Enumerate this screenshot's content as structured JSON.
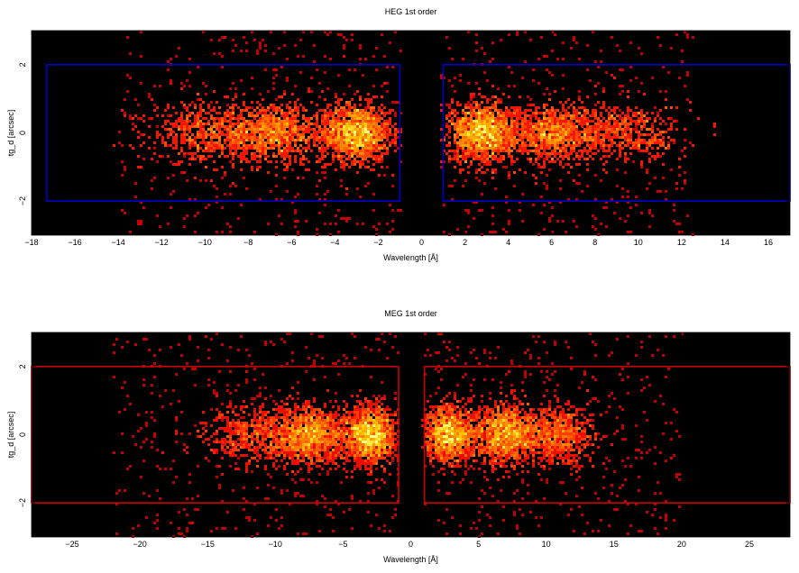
{
  "chart_data": [
    {
      "type": "heatmap",
      "title": "HEG 1st order",
      "xlabel": "Wavelength [Å]",
      "ylabel": "tg_d [arcsec]",
      "xlim": [
        -18,
        17
      ],
      "ylim": [
        -3,
        3
      ],
      "x_ticks": [
        -18,
        -16,
        -14,
        -12,
        -10,
        -8,
        -6,
        -4,
        -2,
        0,
        2,
        4,
        6,
        8,
        10,
        12,
        14,
        16
      ],
      "x_tick_labels": [
        "−18",
        "−16",
        "−14",
        "−12",
        "−10",
        "−8",
        "−6",
        "−4",
        "−2",
        "0",
        "2",
        "4",
        "6",
        "8",
        "10",
        "12",
        "14",
        "16"
      ],
      "y_ticks": [
        -2,
        0,
        2
      ],
      "y_tick_labels": [
        "−2",
        "0",
        "2"
      ],
      "background": "#000000",
      "box_color": "#0000cc",
      "extraction_regions": [
        {
          "x": [
            -17.3,
            -1.0
          ],
          "y": [
            -2,
            2
          ]
        },
        {
          "x": [
            1.0,
            17.0
          ],
          "y": [
            -2,
            2
          ]
        }
      ],
      "clusters": [
        {
          "x": -3.0,
          "width": 1.6,
          "intensity": 1.0
        },
        {
          "x": -6.8,
          "width": 2.5,
          "intensity": 0.75
        },
        {
          "x": -10.0,
          "width": 2.5,
          "intensity": 0.4
        },
        {
          "x": 2.8,
          "width": 1.5,
          "intensity": 1.0
        },
        {
          "x": 6.0,
          "width": 2.2,
          "intensity": 0.7
        },
        {
          "x": 9.5,
          "width": 2.5,
          "intensity": 0.35
        }
      ],
      "signal_range": [
        -14.0,
        12.5
      ]
    },
    {
      "type": "heatmap",
      "title": "MEG 1st order",
      "xlabel": "Wavelength [Å]",
      "ylabel": "tg_d [arcsec]",
      "xlim": [
        -28,
        28
      ],
      "ylim": [
        -3,
        3
      ],
      "x_ticks": [
        -25,
        -20,
        -15,
        -10,
        -5,
        0,
        5,
        10,
        15,
        20,
        25
      ],
      "x_tick_labels": [
        "−25",
        "−20",
        "−15",
        "−10",
        "−5",
        "0",
        "5",
        "10",
        "15",
        "20",
        "25"
      ],
      "y_ticks": [
        -2,
        0,
        2
      ],
      "y_tick_labels": [
        "−2",
        "0",
        "2"
      ],
      "background": "#000000",
      "box_color": "#cc0000",
      "extraction_regions": [
        {
          "x": [
            -28,
            -0.9
          ],
          "y": [
            -2,
            2
          ]
        },
        {
          "x": [
            1.0,
            28
          ],
          "y": [
            -2,
            2
          ]
        }
      ],
      "clusters": [
        {
          "x": -3.0,
          "width": 1.8,
          "intensity": 1.0
        },
        {
          "x": -7.5,
          "width": 3.0,
          "intensity": 0.95
        },
        {
          "x": -12.0,
          "width": 3.5,
          "intensity": 0.35
        },
        {
          "x": 2.8,
          "width": 1.8,
          "intensity": 0.85
        },
        {
          "x": 7.0,
          "width": 2.8,
          "intensity": 1.0
        },
        {
          "x": 11.0,
          "width": 2.5,
          "intensity": 0.45
        }
      ],
      "signal_range": [
        -22.0,
        20.0
      ]
    }
  ]
}
